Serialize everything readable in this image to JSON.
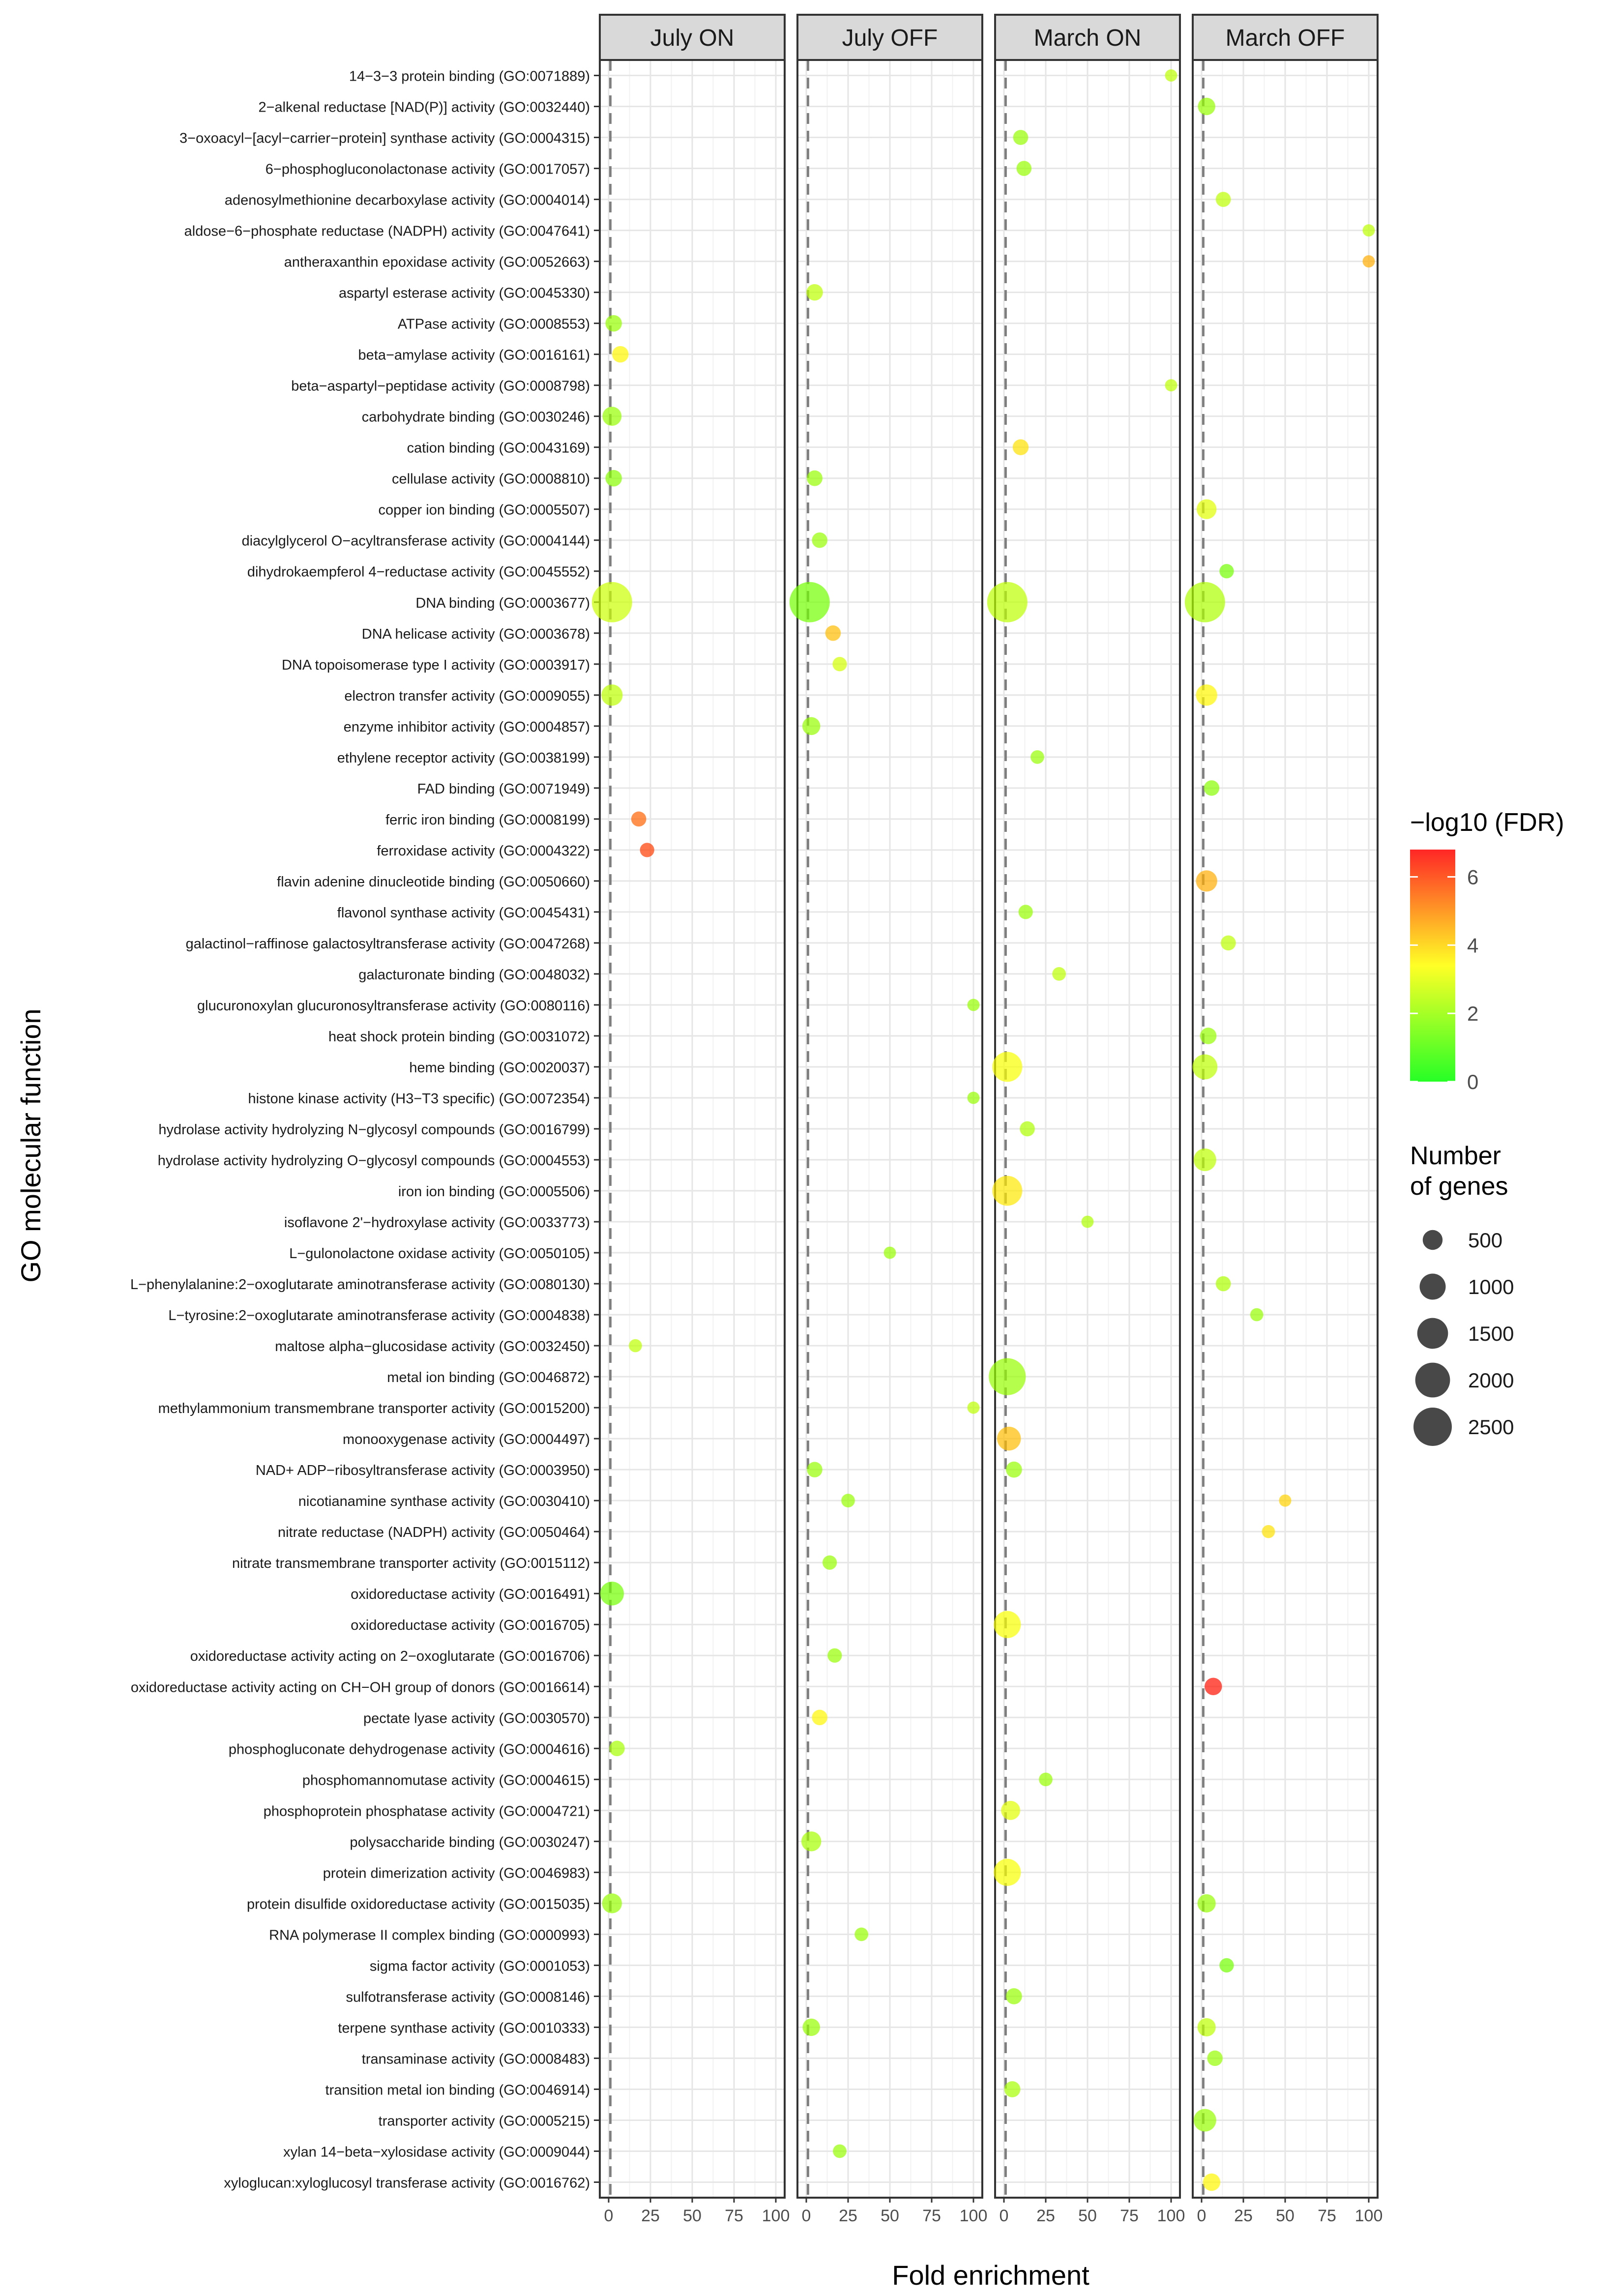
{
  "chart_data": {
    "type": "scatter",
    "title": "",
    "xlabel": "Fold enrichment",
    "ylabel": "GO molecular function",
    "xlim": [
      0,
      100
    ],
    "x_ticks": [
      "0",
      "25",
      "50",
      "75",
      "100"
    ],
    "x_tick_values": [
      0,
      25,
      50,
      75,
      100
    ],
    "reference_line": 1,
    "panels": [
      "July ON",
      "July OFF",
      "March ON",
      "March OFF"
    ],
    "categories": [
      "14−3−3 protein binding (GO:0071889)",
      "2−alkenal reductase [NAD(P)] activity (GO:0032440)",
      "3−oxoacyl−[acyl−carrier−protein] synthase activity (GO:0004315)",
      "6−phosphogluconolactonase activity (GO:0017057)",
      "adenosylmethionine decarboxylase activity (GO:0004014)",
      "aldose−6−phosphate reductase (NADPH) activity (GO:0047641)",
      "antheraxanthin epoxidase activity (GO:0052663)",
      "aspartyl esterase activity (GO:0045330)",
      "ATPase activity (GO:0008553)",
      "beta−amylase activity (GO:0016161)",
      "beta−aspartyl−peptidase activity (GO:0008798)",
      "carbohydrate binding (GO:0030246)",
      "cation binding (GO:0043169)",
      "cellulase activity (GO:0008810)",
      "copper ion binding (GO:0005507)",
      "diacylglycerol O−acyltransferase activity (GO:0004144)",
      "dihydrokaempferol 4−reductase activity (GO:0045552)",
      "DNA binding (GO:0003677)",
      "DNA helicase activity (GO:0003678)",
      "DNA topoisomerase type I activity (GO:0003917)",
      "electron transfer activity (GO:0009055)",
      "enzyme inhibitor activity (GO:0004857)",
      "ethylene receptor activity (GO:0038199)",
      "FAD binding (GO:0071949)",
      "ferric iron binding (GO:0008199)",
      "ferroxidase activity (GO:0004322)",
      "flavin adenine dinucleotide binding (GO:0050660)",
      "flavonol synthase activity (GO:0045431)",
      "galactinol−raffinose galactosyltransferase activity (GO:0047268)",
      "galacturonate binding (GO:0048032)",
      "glucuronoxylan glucuronosyltransferase activity (GO:0080116)",
      "heat shock protein binding (GO:0031072)",
      "heme binding (GO:0020037)",
      "histone kinase activity (H3−T3 specific) (GO:0072354)",
      "hydrolase activity hydrolyzing N−glycosyl compounds (GO:0016799)",
      "hydrolase activity hydrolyzing O−glycosyl compounds (GO:0004553)",
      "iron ion binding (GO:0005506)",
      "isoflavone 2'−hydroxylase activity (GO:0033773)",
      "L−gulonolactone oxidase activity (GO:0050105)",
      "L−phenylalanine:2−oxoglutarate aminotransferase activity (GO:0080130)",
      "L−tyrosine:2−oxoglutarate aminotransferase activity (GO:0004838)",
      "maltose alpha−glucosidase activity (GO:0032450)",
      "metal ion binding (GO:0046872)",
      "methylammonium transmembrane transporter activity (GO:0015200)",
      "monooxygenase activity (GO:0004497)",
      "NAD+ ADP−ribosyltransferase activity (GO:0003950)",
      "nicotianamine synthase activity (GO:0030410)",
      "nitrate reductase (NADPH) activity (GO:0050464)",
      "nitrate transmembrane transporter activity (GO:0015112)",
      "oxidoreductase activity (GO:0016491)",
      "oxidoreductase activity (GO:0016705)",
      "oxidoreductase activity acting on 2−oxoglutarate (GO:0016706)",
      "oxidoreductase activity acting on CH−OH group of donors (GO:0016614)",
      "pectate lyase activity (GO:0030570)",
      "phosphogluconate dehydrogenase activity (GO:0004616)",
      "phosphomannomutase activity (GO:0004615)",
      "phosphoprotein phosphatase activity (GO:0004721)",
      "polysaccharide binding (GO:0030247)",
      "protein dimerization activity (GO:0046983)",
      "protein disulfide oxidoreductase activity (GO:0015035)",
      "RNA polymerase II complex binding (GO:0000993)",
      "sigma factor activity (GO:0001053)",
      "sulfotransferase activity (GO:0008146)",
      "terpene synthase activity (GO:0010333)",
      "transaminase activity (GO:0008483)",
      "transition metal ion binding (GO:0046914)",
      "transporter activity (GO:0005215)",
      "xylan 14−beta−xylosidase activity (GO:0009044)",
      "xyloglucan:xyloglucosyl transferase activity (GO:0016762)"
    ],
    "points": [
      {
        "panel": 0,
        "term": 8,
        "x": 3,
        "fdr": 2.0,
        "genes": 300
      },
      {
        "panel": 0,
        "term": 9,
        "x": 7,
        "fdr": 3.5,
        "genes": 300
      },
      {
        "panel": 0,
        "term": 11,
        "x": 2,
        "fdr": 2.0,
        "genes": 450
      },
      {
        "panel": 0,
        "term": 13,
        "x": 3,
        "fdr": 1.8,
        "genes": 300
      },
      {
        "panel": 0,
        "term": 17,
        "x": 2,
        "fdr": 2.7,
        "genes": 2800
      },
      {
        "panel": 0,
        "term": 20,
        "x": 2,
        "fdr": 2.5,
        "genes": 600
      },
      {
        "panel": 0,
        "term": 24,
        "x": 18,
        "fdr": 5.5,
        "genes": 230
      },
      {
        "panel": 0,
        "term": 25,
        "x": 23,
        "fdr": 6.0,
        "genes": 200
      },
      {
        "panel": 0,
        "term": 41,
        "x": 16,
        "fdr": 2.5,
        "genes": 150
      },
      {
        "panel": 0,
        "term": 49,
        "x": 2,
        "fdr": 1.5,
        "genes": 800
      },
      {
        "panel": 0,
        "term": 54,
        "x": 5,
        "fdr": 2.2,
        "genes": 250
      },
      {
        "panel": 0,
        "term": 59,
        "x": 2,
        "fdr": 2.0,
        "genes": 500
      },
      {
        "panel": 1,
        "term": 7,
        "x": 5,
        "fdr": 2.5,
        "genes": 300
      },
      {
        "panel": 1,
        "term": 13,
        "x": 5,
        "fdr": 2.0,
        "genes": 260
      },
      {
        "panel": 1,
        "term": 15,
        "x": 8,
        "fdr": 2.0,
        "genes": 250
      },
      {
        "panel": 1,
        "term": 17,
        "x": 2,
        "fdr": 1.5,
        "genes": 2800
      },
      {
        "panel": 1,
        "term": 18,
        "x": 16,
        "fdr": 4.3,
        "genes": 250
      },
      {
        "panel": 1,
        "term": 19,
        "x": 20,
        "fdr": 2.8,
        "genes": 200
      },
      {
        "panel": 1,
        "term": 21,
        "x": 3,
        "fdr": 2.0,
        "genes": 380
      },
      {
        "panel": 1,
        "term": 30,
        "x": 100,
        "fdr": 2.0,
        "genes": 120
      },
      {
        "panel": 1,
        "term": 33,
        "x": 100,
        "fdr": 2.0,
        "genes": 120
      },
      {
        "panel": 1,
        "term": 38,
        "x": 50,
        "fdr": 2.0,
        "genes": 120
      },
      {
        "panel": 1,
        "term": 43,
        "x": 100,
        "fdr": 2.5,
        "genes": 120
      },
      {
        "panel": 1,
        "term": 45,
        "x": 5,
        "fdr": 2.0,
        "genes": 250
      },
      {
        "panel": 1,
        "term": 46,
        "x": 25,
        "fdr": 2.0,
        "genes": 170
      },
      {
        "panel": 1,
        "term": 48,
        "x": 14,
        "fdr": 2.0,
        "genes": 200
      },
      {
        "panel": 1,
        "term": 51,
        "x": 17,
        "fdr": 2.0,
        "genes": 200
      },
      {
        "panel": 1,
        "term": 53,
        "x": 8,
        "fdr": 3.5,
        "genes": 250
      },
      {
        "panel": 1,
        "term": 57,
        "x": 3,
        "fdr": 2.2,
        "genes": 500
      },
      {
        "panel": 1,
        "term": 60,
        "x": 33,
        "fdr": 2.0,
        "genes": 170
      },
      {
        "panel": 1,
        "term": 63,
        "x": 3,
        "fdr": 2.0,
        "genes": 350
      },
      {
        "panel": 1,
        "term": 67,
        "x": 20,
        "fdr": 2.0,
        "genes": 170
      },
      {
        "panel": 2,
        "term": 0,
        "x": 100,
        "fdr": 2.5,
        "genes": 120
      },
      {
        "panel": 2,
        "term": 2,
        "x": 10,
        "fdr": 2.0,
        "genes": 230
      },
      {
        "panel": 2,
        "term": 3,
        "x": 12,
        "fdr": 2.0,
        "genes": 230
      },
      {
        "panel": 2,
        "term": 10,
        "x": 100,
        "fdr": 2.5,
        "genes": 120
      },
      {
        "panel": 2,
        "term": 12,
        "x": 10,
        "fdr": 3.8,
        "genes": 270
      },
      {
        "panel": 2,
        "term": 17,
        "x": 2,
        "fdr": 2.5,
        "genes": 2800
      },
      {
        "panel": 2,
        "term": 22,
        "x": 20,
        "fdr": 2.0,
        "genes": 170
      },
      {
        "panel": 2,
        "term": 27,
        "x": 13,
        "fdr": 2.0,
        "genes": 200
      },
      {
        "panel": 2,
        "term": 29,
        "x": 33,
        "fdr": 2.5,
        "genes": 170
      },
      {
        "panel": 2,
        "term": 32,
        "x": 2,
        "fdr": 3.3,
        "genes": 1400
      },
      {
        "panel": 2,
        "term": 34,
        "x": 14,
        "fdr": 2.3,
        "genes": 230
      },
      {
        "panel": 2,
        "term": 36,
        "x": 2,
        "fdr": 3.7,
        "genes": 1400
      },
      {
        "panel": 2,
        "term": 37,
        "x": 50,
        "fdr": 2.3,
        "genes": 120
      },
      {
        "panel": 2,
        "term": 42,
        "x": 2,
        "fdr": 2.0,
        "genes": 2300
      },
      {
        "panel": 2,
        "term": 44,
        "x": 3,
        "fdr": 4.3,
        "genes": 800
      },
      {
        "panel": 2,
        "term": 45,
        "x": 6,
        "fdr": 2.0,
        "genes": 280
      },
      {
        "panel": 2,
        "term": 50,
        "x": 2,
        "fdr": 3.3,
        "genes": 1100
      },
      {
        "panel": 2,
        "term": 55,
        "x": 25,
        "fdr": 2.0,
        "genes": 170
      },
      {
        "panel": 2,
        "term": 56,
        "x": 4,
        "fdr": 3.0,
        "genes": 450
      },
      {
        "panel": 2,
        "term": 58,
        "x": 2,
        "fdr": 3.3,
        "genes": 1100
      },
      {
        "panel": 2,
        "term": 62,
        "x": 6,
        "fdr": 2.0,
        "genes": 280
      },
      {
        "panel": 2,
        "term": 65,
        "x": 5,
        "fdr": 2.2,
        "genes": 280
      },
      {
        "panel": 3,
        "term": 1,
        "x": 3,
        "fdr": 2.0,
        "genes": 350
      },
      {
        "panel": 3,
        "term": 4,
        "x": 13,
        "fdr": 2.5,
        "genes": 230
      },
      {
        "panel": 3,
        "term": 5,
        "x": 100,
        "fdr": 2.5,
        "genes": 120
      },
      {
        "panel": 3,
        "term": 6,
        "x": 100,
        "fdr": 4.5,
        "genes": 120
      },
      {
        "panel": 3,
        "term": 14,
        "x": 3,
        "fdr": 3.0,
        "genes": 500
      },
      {
        "panel": 3,
        "term": 16,
        "x": 15,
        "fdr": 1.5,
        "genes": 200
      },
      {
        "panel": 3,
        "term": 17,
        "x": 2,
        "fdr": 2.3,
        "genes": 2800
      },
      {
        "panel": 3,
        "term": 20,
        "x": 3,
        "fdr": 3.5,
        "genes": 600
      },
      {
        "panel": 3,
        "term": 23,
        "x": 6,
        "fdr": 1.8,
        "genes": 250
      },
      {
        "panel": 3,
        "term": 26,
        "x": 3,
        "fdr": 4.5,
        "genes": 600
      },
      {
        "panel": 3,
        "term": 28,
        "x": 16,
        "fdr": 2.5,
        "genes": 230
      },
      {
        "panel": 3,
        "term": 31,
        "x": 4,
        "fdr": 2.0,
        "genes": 300
      },
      {
        "panel": 3,
        "term": 32,
        "x": 2,
        "fdr": 2.5,
        "genes": 900
      },
      {
        "panel": 3,
        "term": 35,
        "x": 2,
        "fdr": 2.5,
        "genes": 700
      },
      {
        "panel": 3,
        "term": 39,
        "x": 13,
        "fdr": 2.3,
        "genes": 230
      },
      {
        "panel": 3,
        "term": 40,
        "x": 33,
        "fdr": 2.0,
        "genes": 150
      },
      {
        "panel": 3,
        "term": 46,
        "x": 50,
        "fdr": 4.0,
        "genes": 120
      },
      {
        "panel": 3,
        "term": 47,
        "x": 40,
        "fdr": 3.8,
        "genes": 150
      },
      {
        "panel": 3,
        "term": 52,
        "x": 7,
        "fdr": 6.6,
        "genes": 350
      },
      {
        "panel": 3,
        "term": 59,
        "x": 3,
        "fdr": 2.0,
        "genes": 400
      },
      {
        "panel": 3,
        "term": 61,
        "x": 15,
        "fdr": 1.5,
        "genes": 200
      },
      {
        "panel": 3,
        "term": 63,
        "x": 3,
        "fdr": 2.5,
        "genes": 400
      },
      {
        "panel": 3,
        "term": 64,
        "x": 8,
        "fdr": 2.0,
        "genes": 250
      },
      {
        "panel": 3,
        "term": 66,
        "x": 2,
        "fdr": 2.0,
        "genes": 700
      },
      {
        "panel": 3,
        "term": 68,
        "x": 6,
        "fdr": 3.5,
        "genes": 350
      }
    ],
    "color_legend": {
      "title": "−log10 (FDR)",
      "min": 0,
      "max": 6.8,
      "ticks": [
        0,
        2,
        4,
        6
      ],
      "tick_labels": [
        "0",
        "2",
        "4",
        "6"
      ],
      "colors": [
        "#00ff00",
        "#ff0000"
      ]
    },
    "size_legend": {
      "title_line1": "Number",
      "title_line2": "of genes",
      "values": [
        500,
        1000,
        1500,
        2000,
        2500
      ],
      "labels": [
        "500",
        "1000",
        "1500",
        "2000",
        "2500"
      ]
    },
    "grid": true,
    "legend_position": "right"
  }
}
